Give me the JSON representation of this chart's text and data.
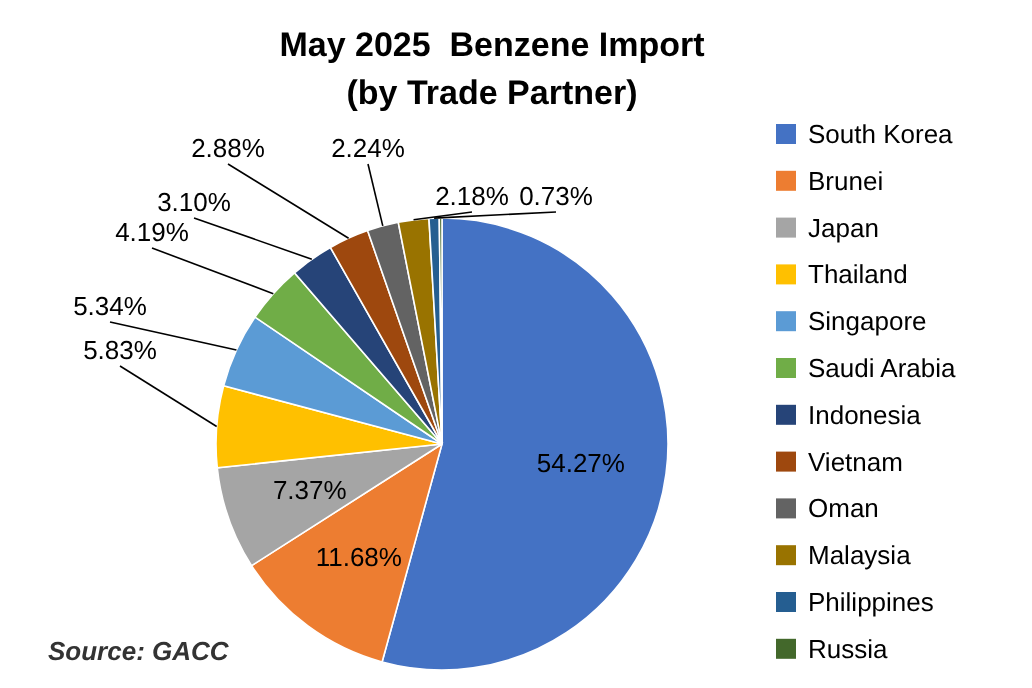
{
  "chart_data": {
    "type": "pie",
    "title": "May 2025  Benzene Import",
    "subtitle": "(by Trade Partner)",
    "categories": [
      "South Korea",
      "Brunei",
      "Japan",
      "Thailand",
      "Singapore",
      "Saudi Arabia",
      "Indonesia",
      "Vietnam",
      "Oman",
      "Malaysia",
      "Philippines",
      "Russia"
    ],
    "values": [
      54.27,
      11.68,
      7.37,
      5.83,
      5.34,
      4.19,
      3.1,
      2.88,
      2.24,
      2.18,
      0.73,
      0.19
    ],
    "value_labels": [
      "54.27%",
      "11.68%",
      "7.37%",
      "5.83%",
      "5.34%",
      "4.19%",
      "3.10%",
      "2.88%",
      "2.24%",
      "2.18%",
      "0.73%",
      null
    ],
    "colors": [
      "#4472c4",
      "#ed7d31",
      "#a5a5a5",
      "#ffc000",
      "#5b9bd5",
      "#70ad47",
      "#264478",
      "#9e480e",
      "#636363",
      "#997300",
      "#255e91",
      "#43682b"
    ],
    "legend": "right",
    "annotations": [
      "Source: GACC"
    ]
  }
}
